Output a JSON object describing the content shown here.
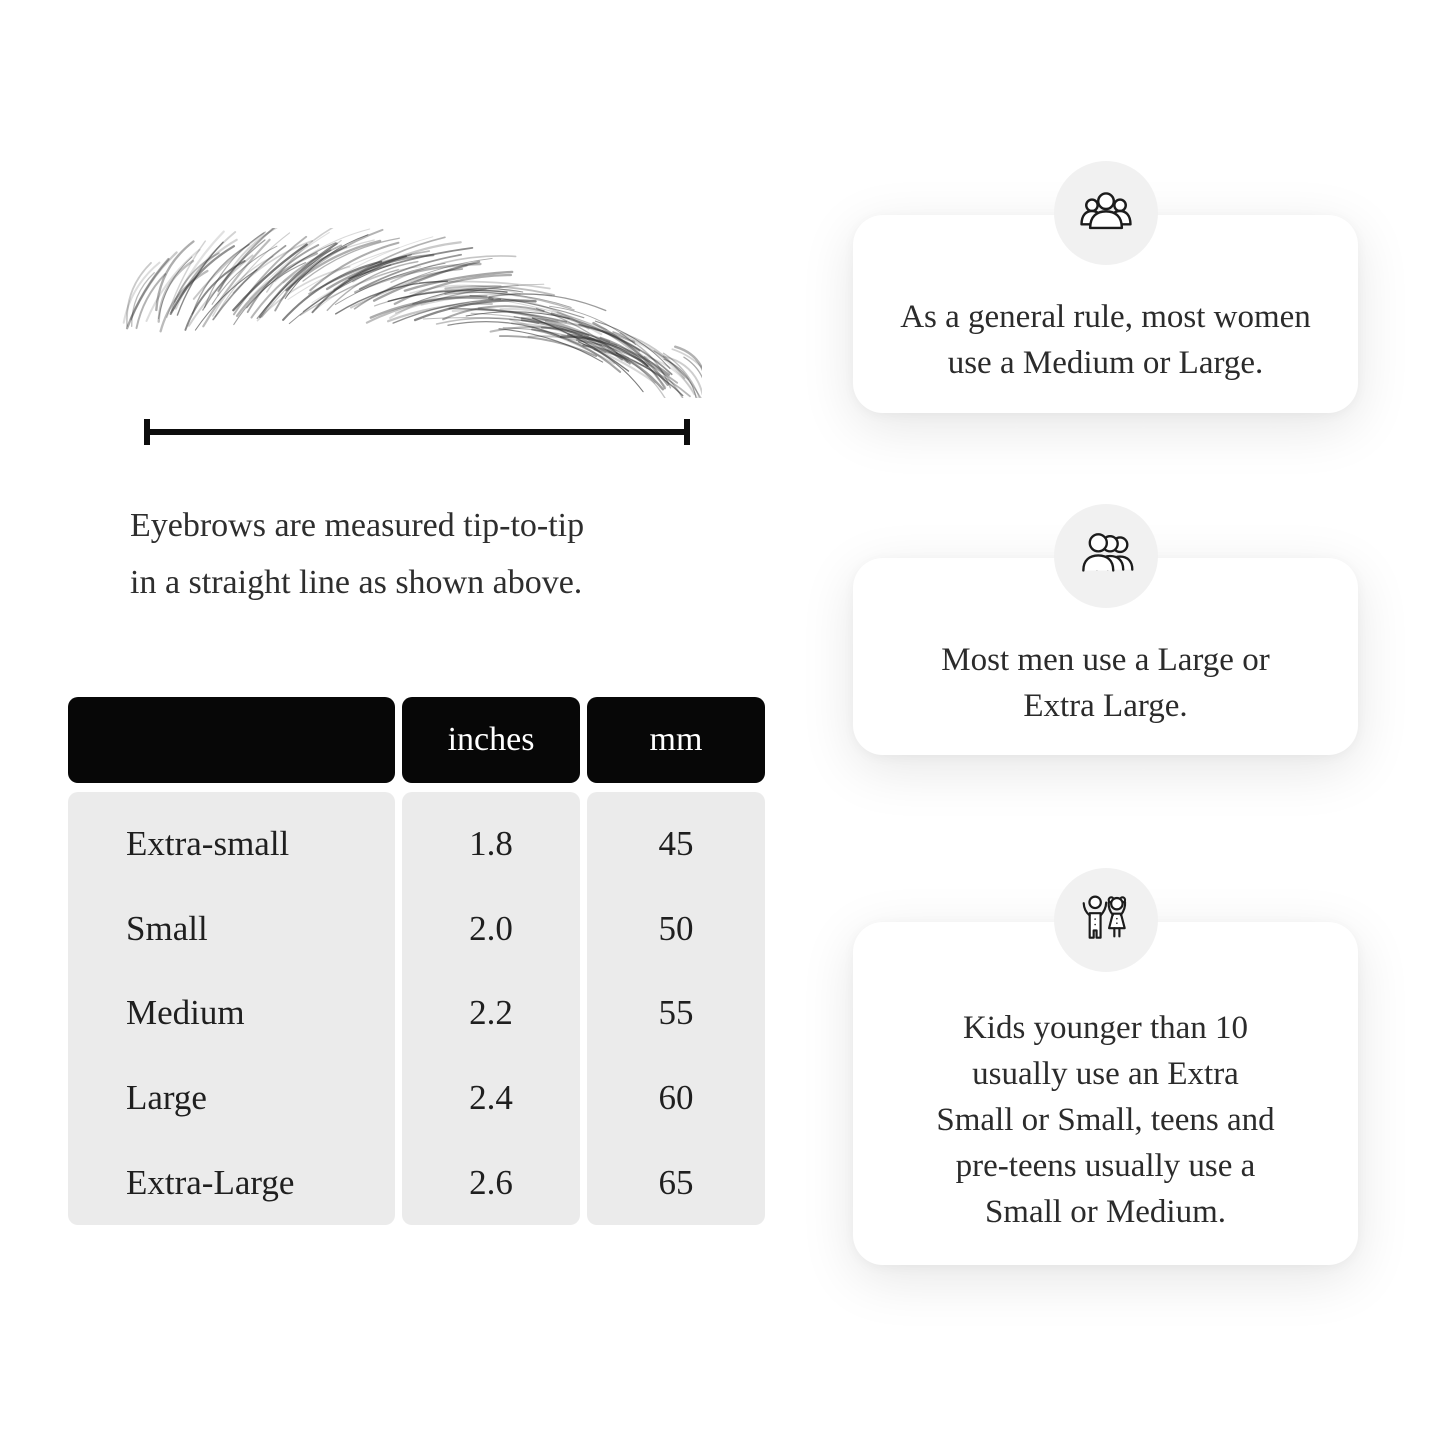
{
  "page": {
    "background": "#ffffff",
    "text_color": "#2b2b2b",
    "table_header_bg": "#070707",
    "table_header_text": "#ffffff",
    "table_body_bg": "#ebebeb",
    "icon_circle_bg": "#f1f1f1",
    "card_bg": "#ffffff"
  },
  "measure_section": {
    "illustration": "eyebrow-sketch",
    "measure_line": "tip-to-tip-ruler",
    "caption_text": "Eyebrows are measured tip-to-tip in a straight line as shown above.",
    "caption_lines": [
      "Eyebrows are measured tip-to-tip",
      "in a straight line as shown above."
    ]
  },
  "size_table": {
    "columns": [
      "",
      "inches",
      "mm"
    ],
    "rows": [
      {
        "label": "Extra-small",
        "inches": "1.8",
        "mm": "45"
      },
      {
        "label": "Small",
        "inches": "2.0",
        "mm": "50"
      },
      {
        "label": "Medium",
        "inches": "2.2",
        "mm": "55"
      },
      {
        "label": "Large",
        "inches": "2.4",
        "mm": "60"
      },
      {
        "label": "Extra-Large",
        "inches": "2.6",
        "mm": "65"
      }
    ]
  },
  "info_cards": [
    {
      "icon": "women-group-icon",
      "text": "As a general rule, most women use a Medium or Large.",
      "lines": [
        "As a general rule, most women",
        "use a Medium or Large."
      ]
    },
    {
      "icon": "men-group-icon",
      "text": "Most men use a Large or Extra Large.",
      "lines": [
        "Most men use a Large or",
        "Extra Large."
      ]
    },
    {
      "icon": "kids-icon",
      "text": "Kids younger than 10 usually use an Extra Small or Small, teens and pre-teens usually use a Small or Medium.",
      "lines": [
        "Kids younger than 10",
        "usually use an Extra",
        "Small or Small, teens and",
        "pre-teens usually use a",
        "Small or Medium."
      ]
    }
  ]
}
